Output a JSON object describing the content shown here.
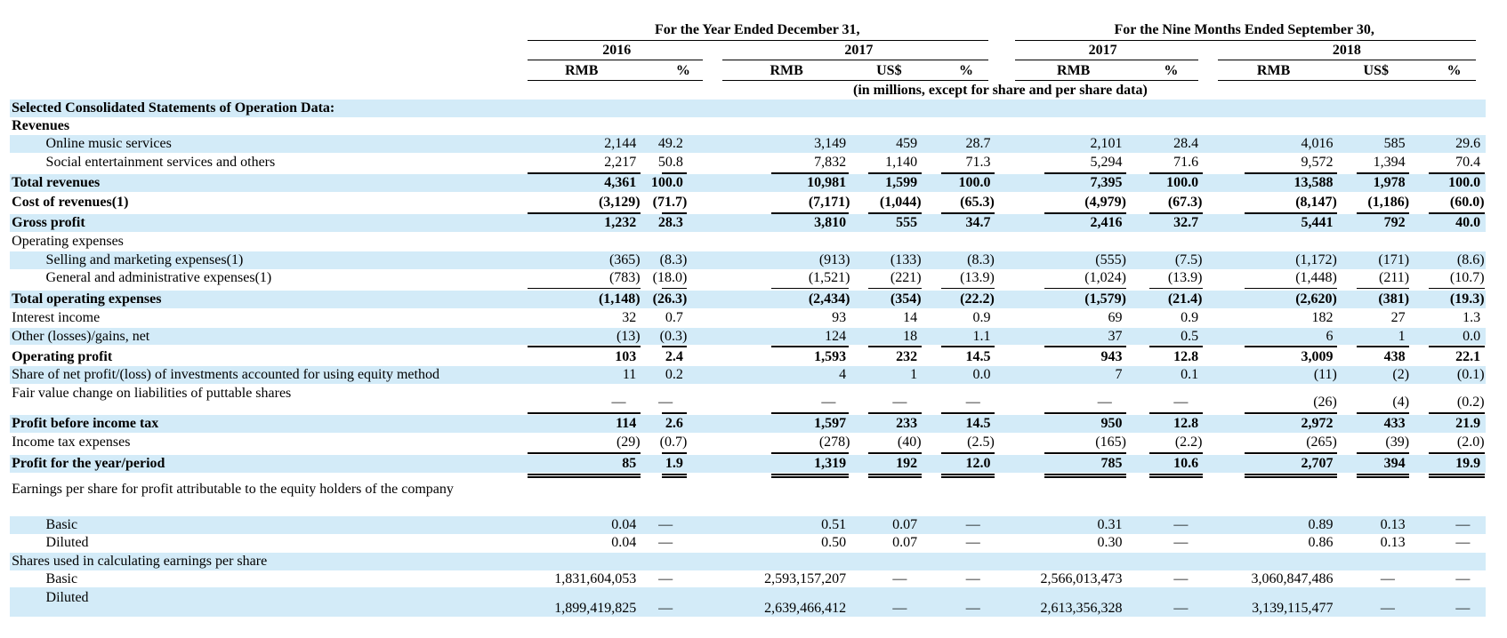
{
  "header": {
    "group_titles": [
      "For the Year Ended December 31,",
      "For the Nine Months Ended September 30,"
    ],
    "years": [
      "2016",
      "2017",
      "2017",
      "2018"
    ],
    "currency": [
      "RMB",
      "%",
      "RMB",
      "US$",
      "%",
      "RMB",
      "%",
      "RMB",
      "US$",
      "%"
    ],
    "note": "(in millions, except for share and per share data)"
  },
  "rows": [
    {
      "label": "Selected Consolidated Statements of Operation Data:"
    },
    {
      "label": "Revenues"
    },
    {
      "label": "Online music services",
      "values": [
        "2,144",
        "49.2",
        "3,149",
        "459",
        "28.7",
        "2,101",
        "28.4",
        "4,016",
        "585",
        "29.6"
      ]
    },
    {
      "label": "Social entertainment services and others",
      "values": [
        "2,217",
        "50.8",
        "7,832",
        "1,140",
        "71.3",
        "5,294",
        "71.6",
        "9,572",
        "1,394",
        "70.4"
      ]
    },
    {
      "label": "Total revenues",
      "values": [
        "4,361",
        "100.0",
        "10,981",
        "1,599",
        "100.0",
        "7,395",
        "100.0",
        "13,588",
        "1,978",
        "100.0"
      ]
    },
    {
      "label": "Cost of revenues(1)",
      "values": [
        "(3,129)",
        "(71.7)",
        "(7,171)",
        "(1,044)",
        "(65.3)",
        "(4,979)",
        "(67.3)",
        "(8,147)",
        "(1,186)",
        "(60.0)"
      ]
    },
    {
      "label": "Gross profit",
      "values": [
        "1,232",
        "28.3",
        "3,810",
        "555",
        "34.7",
        "2,416",
        "32.7",
        "5,441",
        "792",
        "40.0"
      ]
    },
    {
      "label": "Operating expenses"
    },
    {
      "label": "Selling and marketing expenses(1)",
      "values": [
        "(365)",
        "(8.3)",
        "(913)",
        "(133)",
        "(8.3)",
        "(555)",
        "(7.5)",
        "(1,172)",
        "(171)",
        "(8.6)"
      ]
    },
    {
      "label": "General and administrative expenses(1)",
      "values": [
        "(783)",
        "(18.0)",
        "(1,521)",
        "(221)",
        "(13.9)",
        "(1,024)",
        "(13.9)",
        "(1,448)",
        "(211)",
        "(10.7)"
      ]
    },
    {
      "label": "Total operating expenses",
      "values": [
        "(1,148)",
        "(26.3)",
        "(2,434)",
        "(354)",
        "(22.2)",
        "(1,579)",
        "(21.4)",
        "(2,620)",
        "(381)",
        "(19.3)"
      ]
    },
    {
      "label": "Interest income",
      "values": [
        "32",
        "0.7",
        "93",
        "14",
        "0.9",
        "69",
        "0.9",
        "182",
        "27",
        "1.3"
      ]
    },
    {
      "label": "Other (losses)/gains, net",
      "values": [
        "(13)",
        "(0.3)",
        "124",
        "18",
        "1.1",
        "37",
        "0.5",
        "6",
        "1",
        "0.0"
      ]
    },
    {
      "label": "Operating profit",
      "values": [
        "103",
        "2.4",
        "1,593",
        "232",
        "14.5",
        "943",
        "12.8",
        "3,009",
        "438",
        "22.1"
      ]
    },
    {
      "label": "Share of net profit/(loss) of investments accounted for using equity method",
      "values": [
        "11",
        "0.2",
        "4",
        "1",
        "0.0",
        "7",
        "0.1",
        "(11)",
        "(2)",
        "(0.1)"
      ]
    },
    {
      "label": "Fair value change on liabilities of puttable shares",
      "values": [
        "—",
        "—",
        "—",
        "—",
        "—",
        "—",
        "—",
        "(26)",
        "(4)",
        "(0.2)"
      ]
    },
    {
      "label": "Profit before income tax",
      "values": [
        "114",
        "2.6",
        "1,597",
        "233",
        "14.5",
        "950",
        "12.8",
        "2,972",
        "433",
        "21.9"
      ]
    },
    {
      "label": "Income tax expenses",
      "values": [
        "(29)",
        "(0.7)",
        "(278)",
        "(40)",
        "(2.5)",
        "(165)",
        "(2.2)",
        "(265)",
        "(39)",
        "(2.0)"
      ]
    },
    {
      "label": "Profit for the year/period",
      "values": [
        "85",
        "1.9",
        "1,319",
        "192",
        "12.0",
        "785",
        "10.6",
        "2,707",
        "394",
        "19.9"
      ]
    },
    {
      "label": "Earnings per share for profit attributable to the equity holders of the company"
    },
    {
      "label": "Basic",
      "values": [
        "0.04",
        "—",
        "0.51",
        "0.07",
        "—",
        "0.31",
        "—",
        "0.89",
        "0.13",
        "—"
      ]
    },
    {
      "label": "Diluted",
      "values": [
        "0.04",
        "—",
        "0.50",
        "0.07",
        "—",
        "0.30",
        "—",
        "0.86",
        "0.13",
        "—"
      ]
    },
    {
      "label": "Shares used in calculating earnings per share"
    },
    {
      "label": "Basic",
      "values": [
        "1,831,604,053",
        "—",
        "2,593,157,207",
        "—",
        "—",
        "2,566,013,473",
        "—",
        "3,060,847,486",
        "—",
        "—"
      ]
    },
    {
      "label": "Diluted",
      "values": [
        "1,899,419,825",
        "—",
        "2,639,466,412",
        "—",
        "—",
        "2,613,356,328",
        "—",
        "3,139,115,477",
        "—",
        "—"
      ]
    }
  ]
}
